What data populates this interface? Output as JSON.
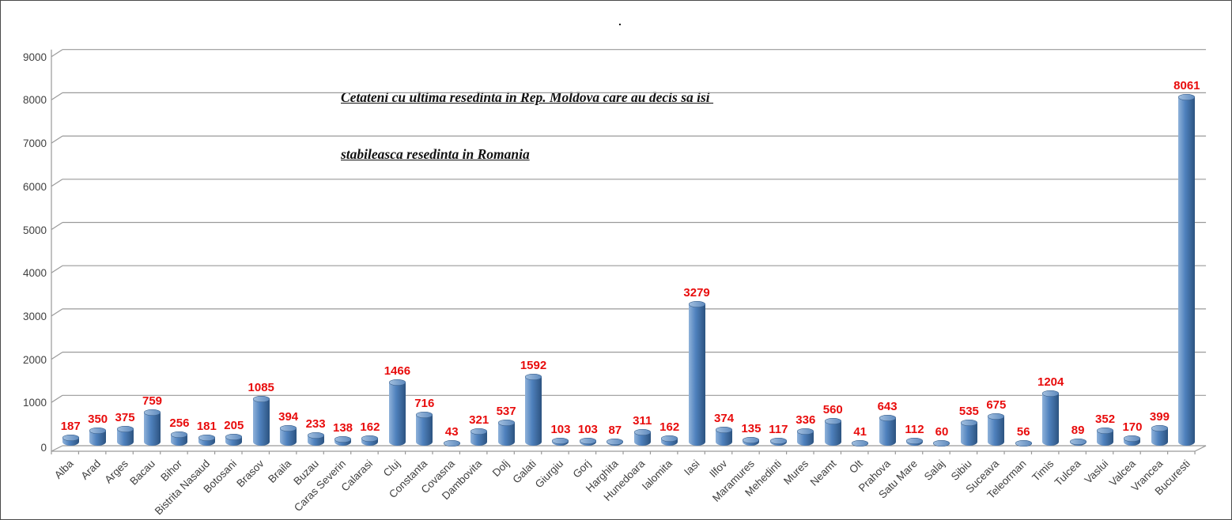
{
  "window": {
    "top_dot": ".",
    "background": "#ffffff",
    "border_color": "#4a4a4a"
  },
  "chart_data": {
    "type": "bar",
    "subtype": "3d-cylinder-columns",
    "title": "Cetateni cu ultima resedinta in Rep. Moldova care au decis sa isi stabileasca resedinta in Romania",
    "title_line1": "Cetateni cu ultima resedinta in Rep. Moldova care au decis sa isi ",
    "title_line2": "stabileasca resedinta in Romania",
    "categories": [
      "Alba",
      "Arad",
      "Arges",
      "Bacau",
      "Bihor",
      "Bistrita Nasaud",
      "Botosani",
      "Brasov",
      "Braila",
      "Buzau",
      "Caras Severin",
      "Calarasi",
      "Cluj",
      "Constanta",
      "Covasna",
      "Dambovita",
      "Dolj",
      "Galati",
      "Giurgiu",
      "Gorj",
      "Harghita",
      "Hunedoara",
      "Ialomita",
      "Iasi",
      "Ilfov",
      "Maramures",
      "Mehedinti",
      "Mures",
      "Neamt",
      "Olt",
      "Prahova",
      "Satu Mare",
      "Salaj",
      "Sibiu",
      "Suceava",
      "Teleorman",
      "Timis",
      "Tulcea",
      "Vaslui",
      "Valcea",
      "Vrancea",
      "Bucuresti"
    ],
    "values": [
      187,
      350,
      375,
      759,
      256,
      181,
      205,
      1085,
      394,
      233,
      138,
      162,
      1466,
      716,
      43,
      321,
      537,
      1592,
      103,
      103,
      87,
      311,
      162,
      3279,
      374,
      135,
      117,
      336,
      560,
      41,
      643,
      112,
      60,
      535,
      675,
      56,
      1204,
      89,
      352,
      170,
      399,
      8061
    ],
    "value_labels_visible": true,
    "value_label_style": "bold red above each bar",
    "xlabel": "",
    "ylabel": "",
    "ylim": [
      0,
      9000
    ],
    "ytick_step": 1000,
    "yticks": [
      "0",
      "1000",
      "2000",
      "3000",
      "4000",
      "5000",
      "6000",
      "7000",
      "8000",
      "9000"
    ],
    "grid": true,
    "legend": "none",
    "colors": {
      "bar_main": "#4f81bd",
      "bar_light": "#8fb2da",
      "bar_dark": "#2c5380",
      "cap_light": "#a3c0e0",
      "cap_dark": "#5d89bd",
      "value_label": "#e80c0c",
      "grid_line": "#9a9a9a",
      "axis_text": "#3f3f3f",
      "title_text": "#111111"
    }
  }
}
